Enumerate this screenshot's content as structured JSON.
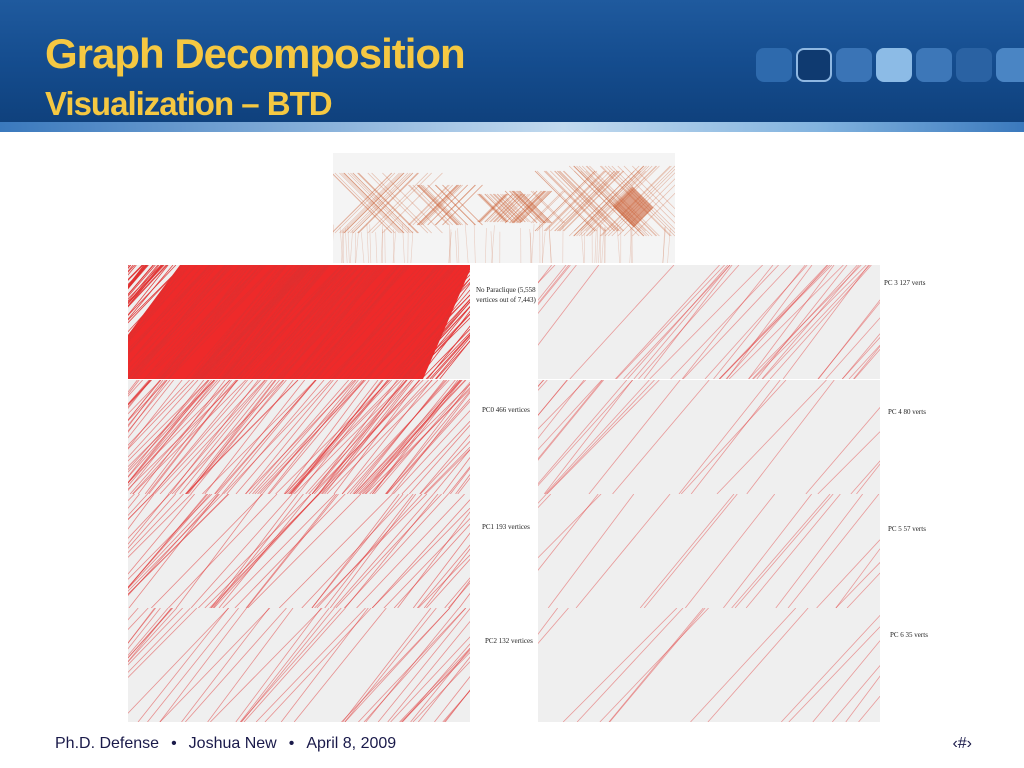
{
  "slide": {
    "title": "Graph Decomposition",
    "subtitle": "Visualization – BTD"
  },
  "panels": [
    {
      "label": "No Paraclique (5,558 vertices out of 7,443)",
      "density": "full"
    },
    {
      "label": "PC0 466 vertices",
      "density": "high"
    },
    {
      "label": "PC1 193 vertices",
      "density": "medium"
    },
    {
      "label": "PC2 132 vertices",
      "density": "medium-low"
    },
    {
      "label": "PC 3 127 verts",
      "density": "low"
    },
    {
      "label": "PC 4 80 verts",
      "density": "low"
    },
    {
      "label": "PC 5 57 verts",
      "density": "very-low"
    },
    {
      "label": "PC 6 35 verts",
      "density": "very-low"
    }
  ],
  "footer": {
    "event": "Ph.D. Defense",
    "author": "Joshua New",
    "date": "April 8, 2009",
    "separator": "•",
    "page": "‹#›"
  },
  "colors": {
    "header": "#154d8f",
    "title": "#f5c842",
    "line_red": "#e03030",
    "line_dense_fill": "#ee2a2a",
    "matrix_brown": "#c8582c",
    "panel_bg": "#efefef"
  }
}
